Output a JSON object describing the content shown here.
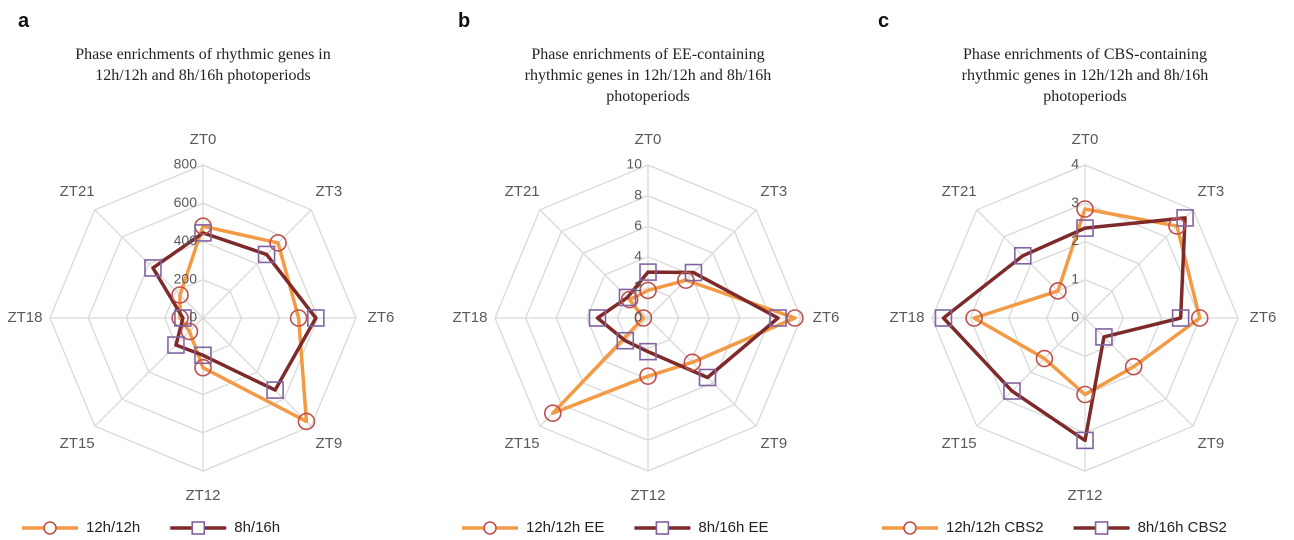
{
  "chart_data": [
    {
      "type": "radar",
      "panel_label": "a",
      "title": "Phase enrichments of rhythmic genes in 12h/12h and 8h/16h photoperiods",
      "categories": [
        "ZT0",
        "ZT3",
        "ZT6",
        "ZT9",
        "ZT12",
        "ZT15",
        "ZT18",
        "ZT21"
      ],
      "ylim": [
        0,
        800
      ],
      "yticks": [
        0,
        200,
        400,
        600,
        800
      ],
      "series": [
        {
          "name": "12h/12h",
          "color": "#f39a45",
          "marker": "circle",
          "marker_color": "#c0504d",
          "values": [
            480,
            555,
            500,
            765,
            260,
            100,
            120,
            170
          ]
        },
        {
          "name": "8h/16h",
          "color": "#7f2a2a",
          "marker": "square",
          "marker_color": "#8064a2",
          "values": [
            445,
            470,
            590,
            533,
            195,
            200,
            105,
            370
          ]
        }
      ]
    },
    {
      "type": "radar",
      "panel_label": "b",
      "title": "Phase enrichments of EE-containing rhythmic genes in 12h/12h and 8h/16h photoperiods",
      "categories": [
        "ZT0",
        "ZT3",
        "ZT6",
        "ZT9",
        "ZT12",
        "ZT15",
        "ZT18",
        "ZT21"
      ],
      "ylim": [
        0,
        10
      ],
      "yticks": [
        0,
        2,
        4,
        6,
        8,
        10
      ],
      "series": [
        {
          "name": "12h/12h EE",
          "color": "#f39a45",
          "marker": "circle",
          "marker_color": "#c0504d",
          "values": [
            1.8,
            3.5,
            9.6,
            4.1,
            3.8,
            8.8,
            0.3,
            1.7
          ]
        },
        {
          "name": "8h/16h EE",
          "color": "#7f2a2a",
          "marker": "square",
          "marker_color": "#8064a2",
          "values": [
            3.0,
            4.2,
            8.5,
            5.5,
            2.2,
            2.1,
            3.3,
            1.9
          ]
        }
      ]
    },
    {
      "type": "radar",
      "panel_label": "c",
      "title": "Phase enrichments of CBS-containing rhythmic genes in 12h/12h and 8h/16h photoperiods",
      "categories": [
        "ZT0",
        "ZT3",
        "ZT6",
        "ZT9",
        "ZT12",
        "ZT15",
        "ZT18",
        "ZT21"
      ],
      "ylim": [
        0,
        4
      ],
      "yticks": [
        0,
        1,
        2,
        3,
        4
      ],
      "series": [
        {
          "name": "12h/12h CBS2",
          "color": "#f39a45",
          "marker": "circle",
          "marker_color": "#c0504d",
          "values": [
            2.85,
            3.4,
            3.0,
            1.8,
            2.0,
            1.5,
            2.9,
            1.0
          ]
        },
        {
          "name": "8h/16h CBS2",
          "color": "#7f2a2a",
          "marker": "square",
          "marker_color": "#8064a2",
          "values": [
            2.35,
            3.7,
            2.5,
            0.7,
            3.2,
            2.7,
            3.7,
            2.3
          ]
        }
      ]
    }
  ]
}
